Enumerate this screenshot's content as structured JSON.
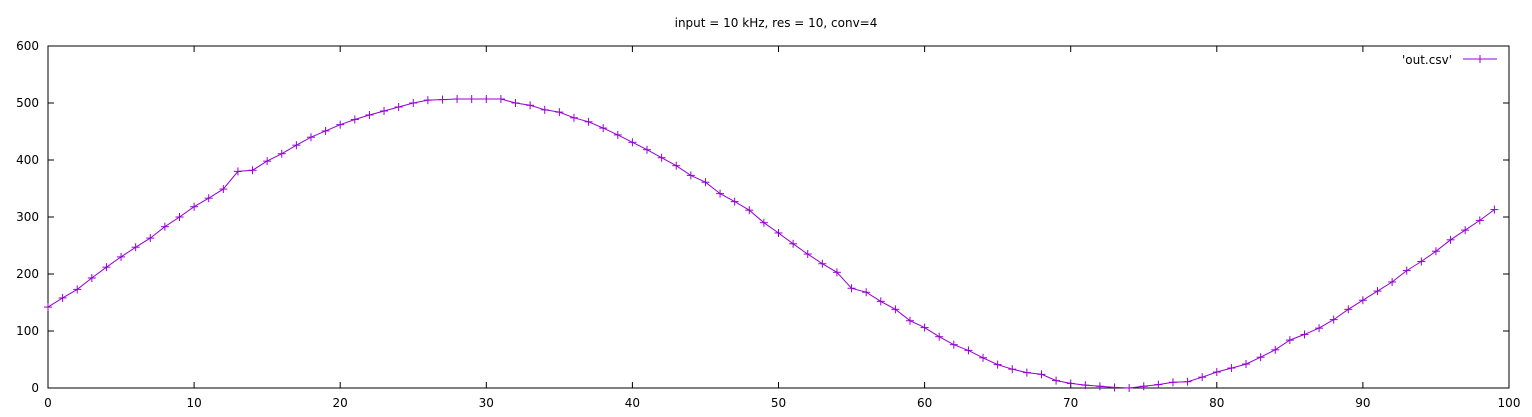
{
  "chart_data": {
    "type": "line",
    "title": "input = 10 kHz, res = 10, conv=4",
    "xlabel": "",
    "ylabel": "",
    "xlim": [
      0,
      100
    ],
    "ylim": [
      0,
      600
    ],
    "x_ticks": [
      0,
      10,
      20,
      30,
      40,
      50,
      60,
      70,
      80,
      90,
      100
    ],
    "y_ticks": [
      0,
      100,
      200,
      300,
      400,
      500,
      600
    ],
    "grid": false,
    "legend": "top-right",
    "marker": "plus",
    "series": [
      {
        "name": "'out.csv'",
        "color": "#9400d3",
        "x": [
          0,
          1,
          2,
          3,
          4,
          5,
          6,
          7,
          8,
          9,
          10,
          11,
          12,
          13,
          14,
          15,
          16,
          17,
          18,
          19,
          20,
          21,
          22,
          23,
          24,
          25,
          26,
          27,
          28,
          29,
          30,
          31,
          32,
          33,
          34,
          35,
          36,
          37,
          38,
          39,
          40,
          41,
          42,
          43,
          44,
          45,
          46,
          47,
          48,
          49,
          50,
          51,
          52,
          53,
          54,
          55,
          56,
          57,
          58,
          59,
          60,
          61,
          62,
          63,
          64,
          65,
          66,
          67,
          68,
          69,
          70,
          71,
          72,
          73,
          74,
          75,
          76,
          77,
          78,
          79,
          80,
          81,
          82,
          83,
          84,
          85,
          86,
          87,
          88,
          89,
          90,
          91,
          92,
          93,
          94,
          95,
          96,
          97,
          98,
          99
        ],
        "y": [
          142,
          158,
          173,
          193,
          212,
          230,
          247,
          263,
          283,
          300,
          318,
          333,
          349,
          380,
          382,
          398,
          411,
          426,
          440,
          451,
          462,
          471,
          479,
          486,
          493,
          500,
          505,
          506,
          507,
          507,
          507,
          507,
          500,
          496,
          488,
          484,
          474,
          467,
          456,
          444,
          431,
          418,
          404,
          390,
          373,
          361,
          341,
          327,
          312,
          290,
          272,
          253,
          235,
          218,
          203,
          175,
          168,
          152,
          138,
          118,
          106,
          90,
          76,
          66,
          53,
          41,
          33,
          27,
          24,
          13,
          8,
          5,
          3,
          1,
          0,
          3,
          6,
          10,
          11,
          19,
          28,
          35,
          42,
          54,
          67,
          84,
          94,
          105,
          120,
          138,
          154,
          170,
          186,
          206,
          222,
          240,
          260,
          277,
          294,
          313
        ]
      }
    ]
  }
}
